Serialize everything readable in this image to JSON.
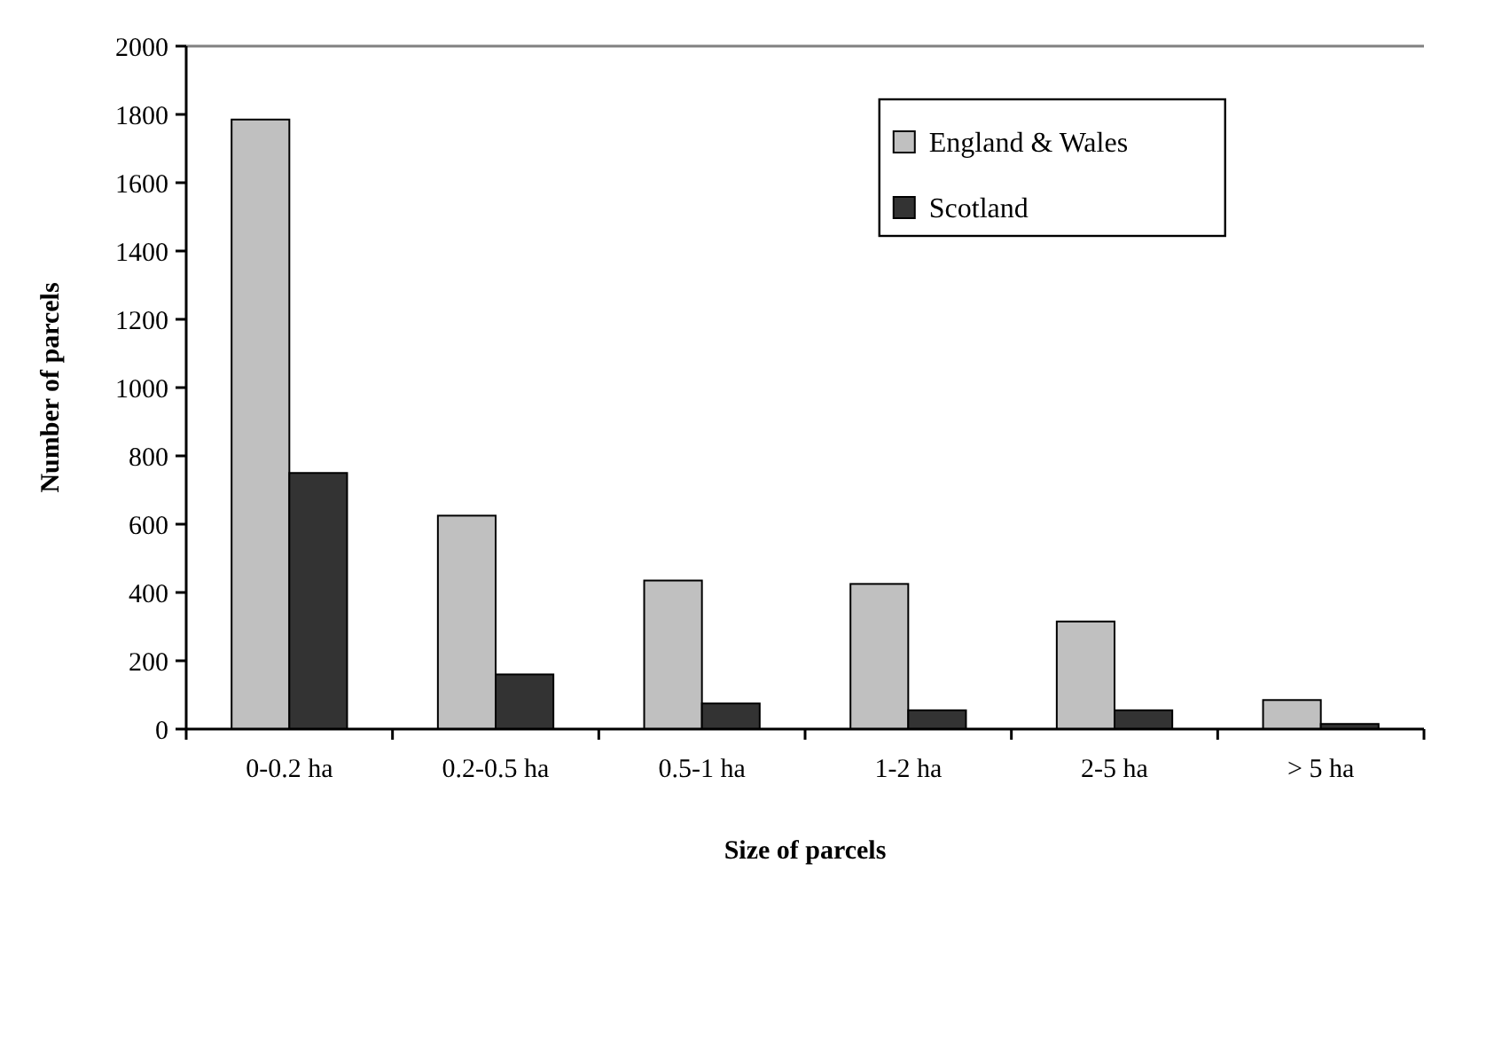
{
  "chart_data": {
    "type": "bar",
    "xlabel": "Size of parcels",
    "ylabel": "Number of parcels",
    "categories": [
      "0-0.2 ha",
      "0.2-0.5 ha",
      "0.5-1 ha",
      "1-2 ha",
      "2-5 ha",
      "> 5 ha"
    ],
    "series": [
      {
        "name": "England & Wales",
        "color": "#c0c0c0",
        "values": [
          1785,
          625,
          435,
          425,
          315,
          85
        ]
      },
      {
        "name": "Scotland",
        "color": "#333333",
        "values": [
          750,
          160,
          75,
          55,
          55,
          15
        ]
      }
    ],
    "ylim": [
      0,
      2000
    ],
    "yticks": [
      0,
      200,
      400,
      600,
      800,
      1000,
      1200,
      1400,
      1600,
      1800,
      2000
    ],
    "grid": false,
    "legend": "top right"
  }
}
